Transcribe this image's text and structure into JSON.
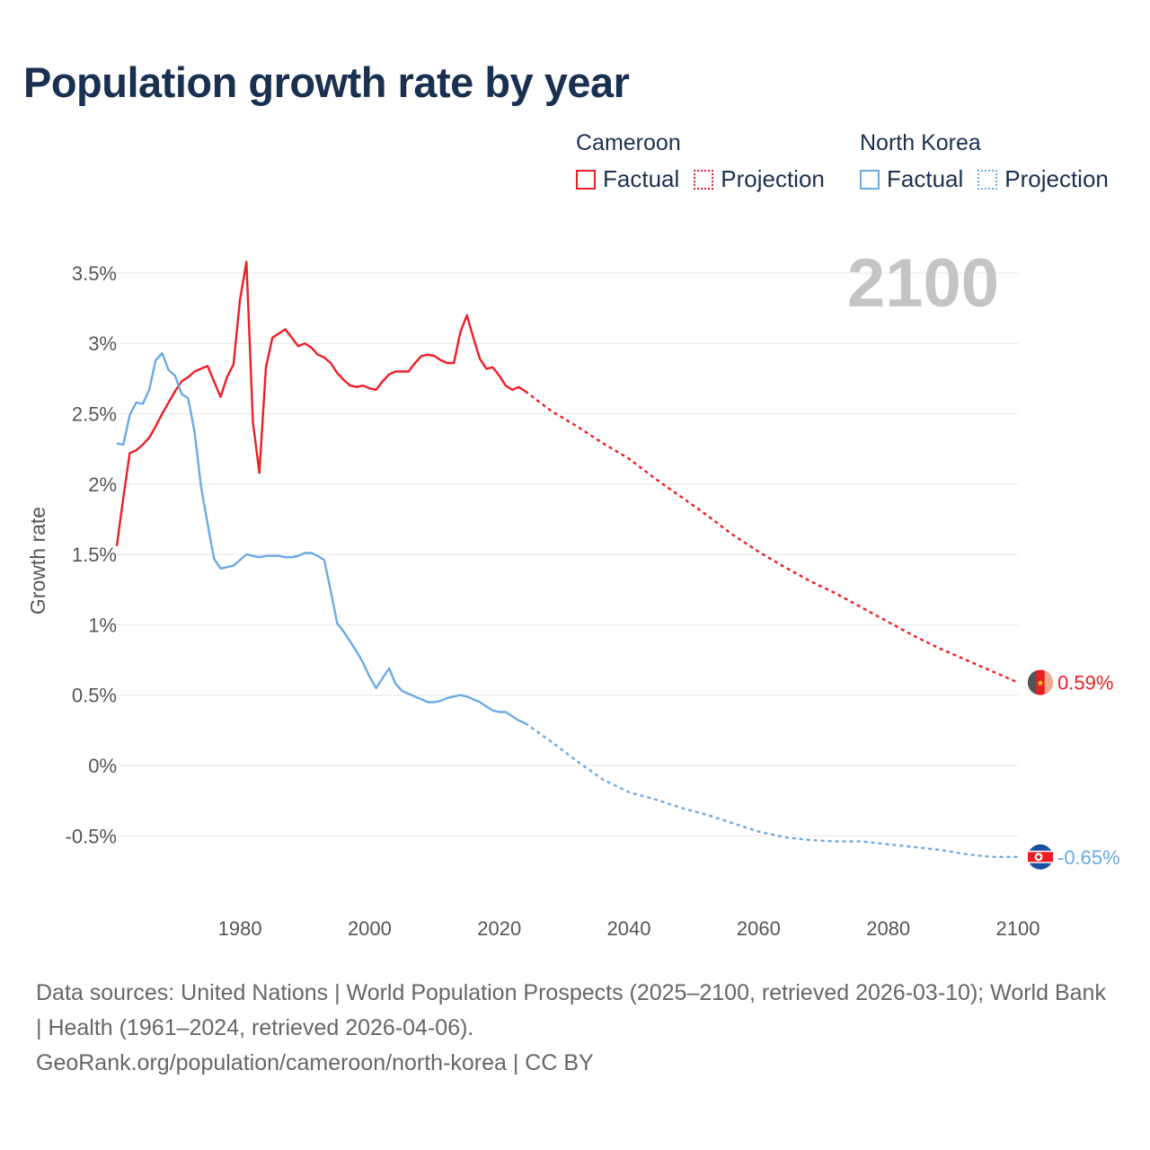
{
  "title": "Population growth rate by year",
  "legend": {
    "groups": [
      {
        "name": "Cameroon",
        "color": "#ee1c25",
        "items": [
          {
            "label": "Factual",
            "style": "solid"
          },
          {
            "label": "Projection",
            "style": "dotted"
          }
        ]
      },
      {
        "name": "North Korea",
        "color": "#6aaae4",
        "items": [
          {
            "label": "Factual",
            "style": "solid"
          },
          {
            "label": "Projection",
            "style": "dotted"
          }
        ]
      }
    ]
  },
  "footer": {
    "sources": "Data sources: United Nations | World Population Prospects (2025–2100, retrieved 2026-03-10); World Bank | Health (1961–2024, retrieved 2026-04-06).",
    "attribution": "GeoRank.org/population/cameroon/north-korea | CC BY"
  },
  "chart_data": {
    "type": "line",
    "title": "Population growth rate by year",
    "ylabel": "Growth rate",
    "xlabel": "",
    "year_watermark": "2100",
    "xlim": [
      1961,
      2100
    ],
    "ylim": [
      -1.0,
      3.75
    ],
    "xticks": [
      1980,
      2000,
      2020,
      2040,
      2060,
      2080,
      2100
    ],
    "xtick_labels": [
      "1980",
      "2000",
      "2020",
      "2040",
      "2060",
      "2080",
      "2100"
    ],
    "yticks": [
      -0.5,
      0,
      0.5,
      1,
      1.5,
      2,
      2.5,
      3,
      3.5
    ],
    "ytick_labels": [
      "-0.5%",
      "0%",
      "0.5%",
      "1%",
      "1.5%",
      "2%",
      "2.5%",
      "3%",
      "3.5%"
    ],
    "grid": true,
    "series": [
      {
        "name": "Cameroon",
        "color": "#ee1c25",
        "end_label": "0.59%",
        "factual": {
          "x": [
            1961,
            1962,
            1963,
            1964,
            1965,
            1966,
            1967,
            1968,
            1969,
            1970,
            1971,
            1972,
            1973,
            1974,
            1975,
            1976,
            1977,
            1978,
            1979,
            1980,
            1981,
            1982,
            1983,
            1984,
            1985,
            1986,
            1987,
            1988,
            1989,
            1990,
            1991,
            1992,
            1993,
            1994,
            1995,
            1996,
            1997,
            1998,
            1999,
            2000,
            2001,
            2002,
            2003,
            2004,
            2005,
            2006,
            2007,
            2008,
            2009,
            2010,
            2011,
            2012,
            2013,
            2014,
            2015,
            2016,
            2017,
            2018,
            2019,
            2020,
            2021,
            2022,
            2023,
            2024
          ],
          "y": [
            1.56,
            1.9,
            2.22,
            2.24,
            2.28,
            2.33,
            2.41,
            2.5,
            2.58,
            2.66,
            2.73,
            2.76,
            2.8,
            2.82,
            2.84,
            2.73,
            2.62,
            2.76,
            2.85,
            3.31,
            3.58,
            2.44,
            2.08,
            2.83,
            3.04,
            3.07,
            3.1,
            3.04,
            2.98,
            3.0,
            2.97,
            2.92,
            2.9,
            2.86,
            2.79,
            2.74,
            2.7,
            2.69,
            2.7,
            2.68,
            2.67,
            2.73,
            2.78,
            2.8,
            2.8,
            2.8,
            2.86,
            2.91,
            2.92,
            2.91,
            2.88,
            2.86,
            2.86,
            3.08,
            3.2,
            3.04,
            2.89,
            2.82,
            2.83,
            2.77,
            2.7,
            2.67,
            2.69,
            2.66
          ]
        },
        "projection": {
          "x": [
            2024,
            2028,
            2032,
            2036,
            2040,
            2044,
            2048,
            2052,
            2056,
            2060,
            2064,
            2068,
            2072,
            2076,
            2080,
            2084,
            2088,
            2092,
            2096,
            2100
          ],
          "y": [
            2.66,
            2.52,
            2.41,
            2.29,
            2.18,
            2.04,
            1.91,
            1.78,
            1.64,
            1.52,
            1.41,
            1.31,
            1.22,
            1.12,
            1.02,
            0.92,
            0.83,
            0.75,
            0.67,
            0.59
          ]
        }
      },
      {
        "name": "North Korea",
        "color": "#6aaae4",
        "end_label": "-0.65%",
        "factual": {
          "x": [
            1961,
            1962,
            1963,
            1964,
            1965,
            1966,
            1967,
            1968,
            1969,
            1970,
            1971,
            1972,
            1973,
            1974,
            1975,
            1976,
            1977,
            1978,
            1979,
            1980,
            1981,
            1982,
            1983,
            1984,
            1985,
            1986,
            1987,
            1988,
            1989,
            1990,
            1991,
            1992,
            1993,
            1994,
            1995,
            1996,
            1997,
            1998,
            1999,
            2000,
            2001,
            2002,
            2003,
            2004,
            2005,
            2006,
            2007,
            2008,
            2009,
            2010,
            2011,
            2012,
            2013,
            2014,
            2015,
            2016,
            2017,
            2018,
            2019,
            2020,
            2021,
            2022,
            2023,
            2024
          ],
          "y": [
            2.29,
            2.28,
            2.49,
            2.58,
            2.57,
            2.67,
            2.88,
            2.93,
            2.81,
            2.77,
            2.64,
            2.61,
            2.37,
            1.98,
            1.72,
            1.47,
            1.4,
            1.41,
            1.42,
            1.46,
            1.5,
            1.49,
            1.48,
            1.49,
            1.49,
            1.49,
            1.48,
            1.48,
            1.49,
            1.51,
            1.51,
            1.49,
            1.46,
            1.24,
            1.01,
            0.95,
            0.88,
            0.81,
            0.73,
            0.63,
            0.55,
            0.62,
            0.69,
            0.58,
            0.53,
            0.51,
            0.49,
            0.47,
            0.45,
            0.45,
            0.46,
            0.48,
            0.49,
            0.5,
            0.49,
            0.47,
            0.45,
            0.42,
            0.39,
            0.38,
            0.38,
            0.35,
            0.32,
            0.3
          ]
        },
        "projection": {
          "x": [
            2024,
            2028,
            2032,
            2036,
            2040,
            2044,
            2048,
            2052,
            2056,
            2060,
            2064,
            2068,
            2072,
            2076,
            2080,
            2084,
            2088,
            2092,
            2096,
            2100
          ],
          "y": [
            0.3,
            0.17,
            0.03,
            -0.1,
            -0.19,
            -0.24,
            -0.3,
            -0.35,
            -0.41,
            -0.47,
            -0.51,
            -0.53,
            -0.54,
            -0.54,
            -0.56,
            -0.58,
            -0.6,
            -0.63,
            -0.65,
            -0.65
          ]
        }
      }
    ]
  }
}
